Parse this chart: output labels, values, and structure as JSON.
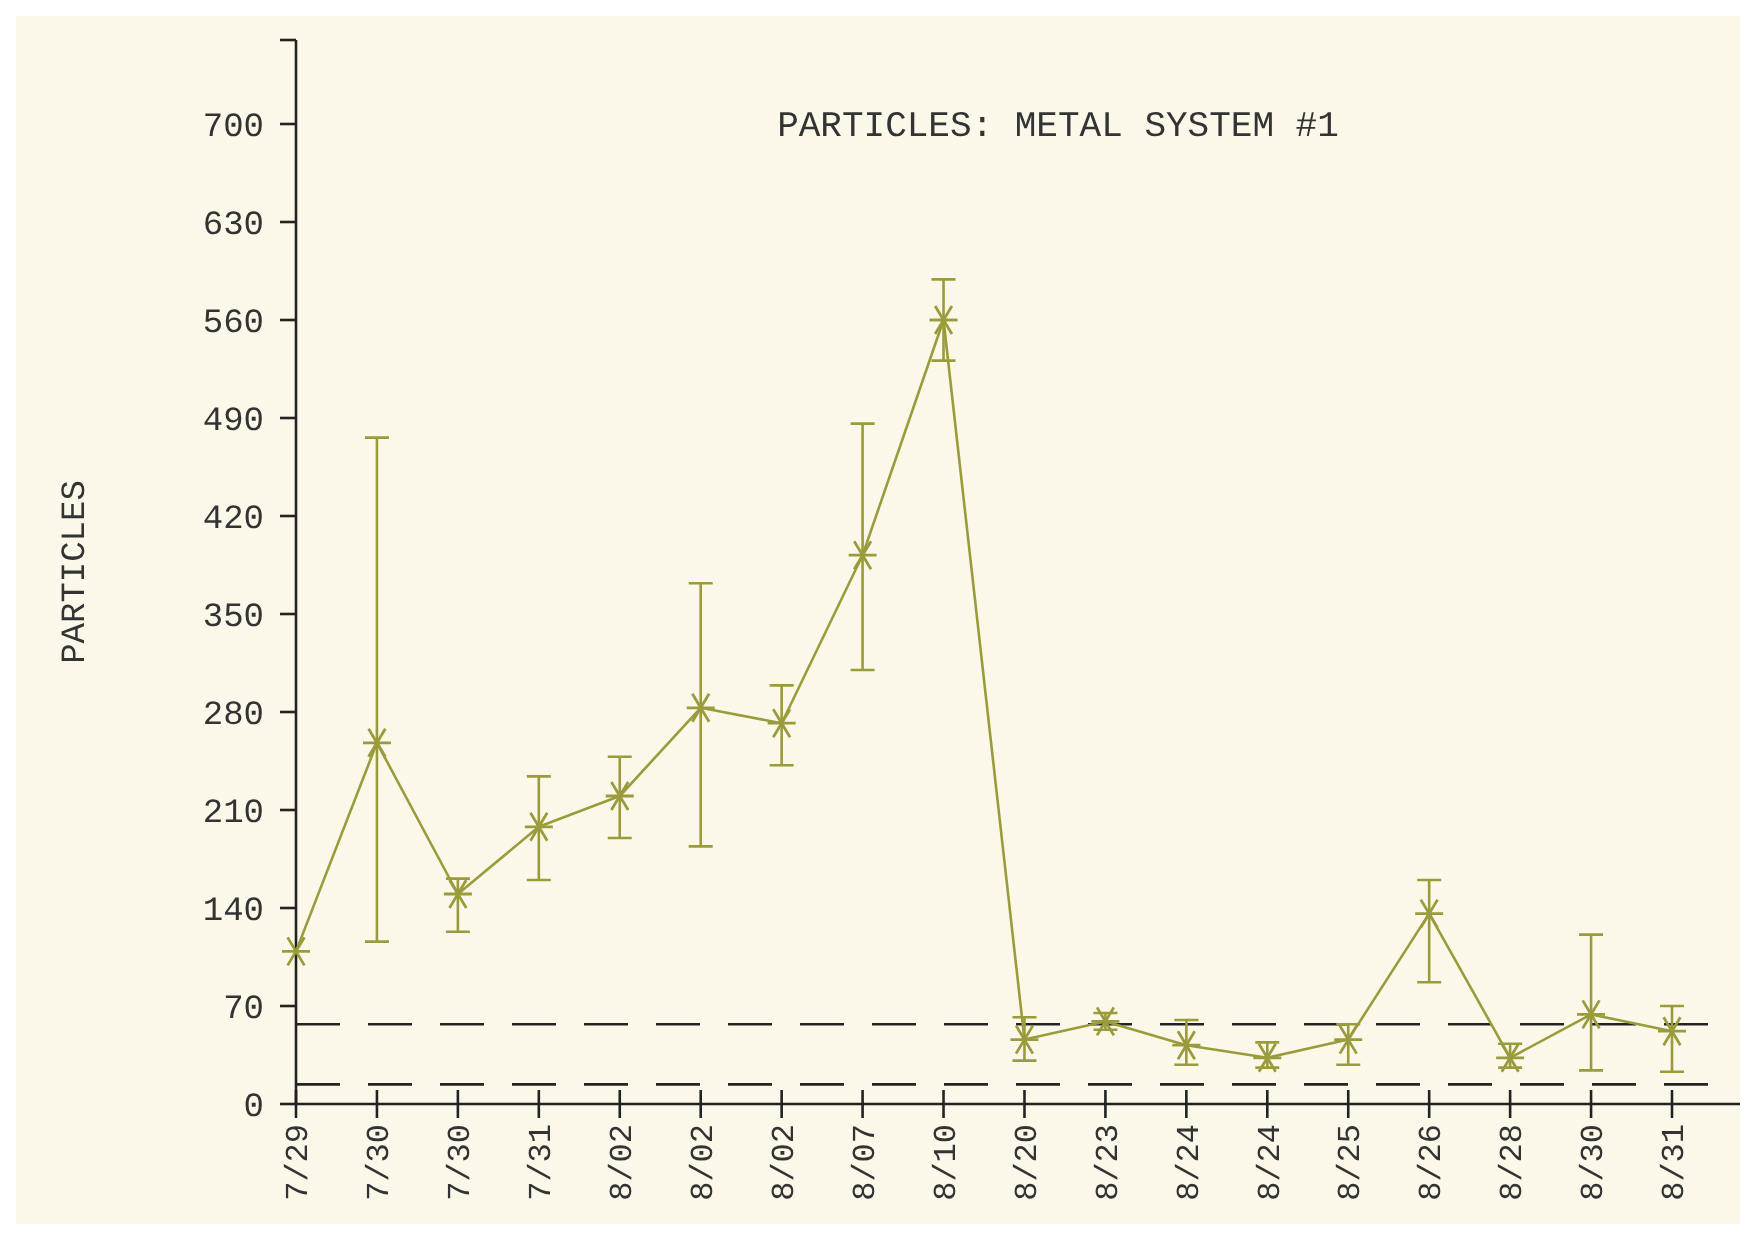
{
  "chart_data": {
    "type": "line",
    "title": "PARTICLES: METAL SYSTEM #1",
    "ylabel": "PARTICLES",
    "categories": [
      "7/29",
      "7/30",
      "7/30",
      "7/31",
      "8/02",
      "8/02",
      "8/02",
      "8/07",
      "8/10",
      "8/20",
      "8/23",
      "8/24",
      "8/24",
      "8/25",
      "8/26",
      "8/28",
      "8/30",
      "8/31"
    ],
    "series": [
      {
        "color": "#9a9c3c",
        "values": [
          109,
          258,
          150,
          198,
          220,
          283,
          272,
          392,
          560,
          46,
          59,
          42,
          33,
          46,
          136,
          33,
          64,
          52
        ],
        "errors": [
          null,
          [
            116,
            476
          ],
          [
            123,
            161
          ],
          [
            160,
            234
          ],
          [
            190,
            248
          ],
          [
            184,
            372
          ],
          [
            242,
            299
          ],
          [
            310,
            486
          ],
          [
            531,
            589
          ],
          [
            31,
            62
          ],
          [
            53,
            65
          ],
          [
            28,
            60
          ],
          [
            26,
            44
          ],
          [
            28,
            57
          ],
          [
            87,
            160
          ],
          [
            26,
            43
          ],
          [
            24,
            121
          ],
          [
            23,
            70
          ]
        ]
      }
    ],
    "ylim": [
      0,
      760
    ],
    "yticks": [
      0,
      70,
      140,
      210,
      280,
      350,
      420,
      490,
      560,
      630,
      700
    ],
    "marker": "cross",
    "line_style": "solid",
    "ref_lines": [
      {
        "axis": "y",
        "value": 57,
        "color": "#222222",
        "line_style": "dashed"
      },
      {
        "axis": "y",
        "value": 14,
        "color": "#222222",
        "line_style": "dashed"
      }
    ]
  }
}
